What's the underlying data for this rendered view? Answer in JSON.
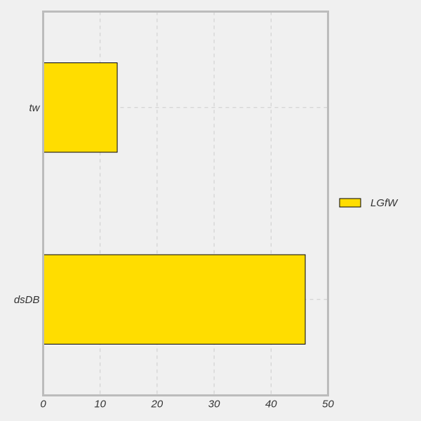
{
  "chart_data": {
    "type": "bar",
    "orientation": "horizontal",
    "categories": [
      "tw",
      "dsDB"
    ],
    "series": [
      {
        "name": "LGfW",
        "values": [
          13,
          46
        ],
        "color": "#ffdd00"
      }
    ],
    "xlim": [
      0,
      50
    ],
    "x_ticks": [
      0,
      10,
      20,
      30,
      40,
      50
    ],
    "grid": true,
    "legend_position": "right",
    "colors": {
      "background": "#f0f0f0",
      "bar_fill": "#ffdd00",
      "bar_stroke": "#000000",
      "axes_frame": "#bcbcbc",
      "grid": "#cccccc",
      "text": "#333333"
    }
  }
}
